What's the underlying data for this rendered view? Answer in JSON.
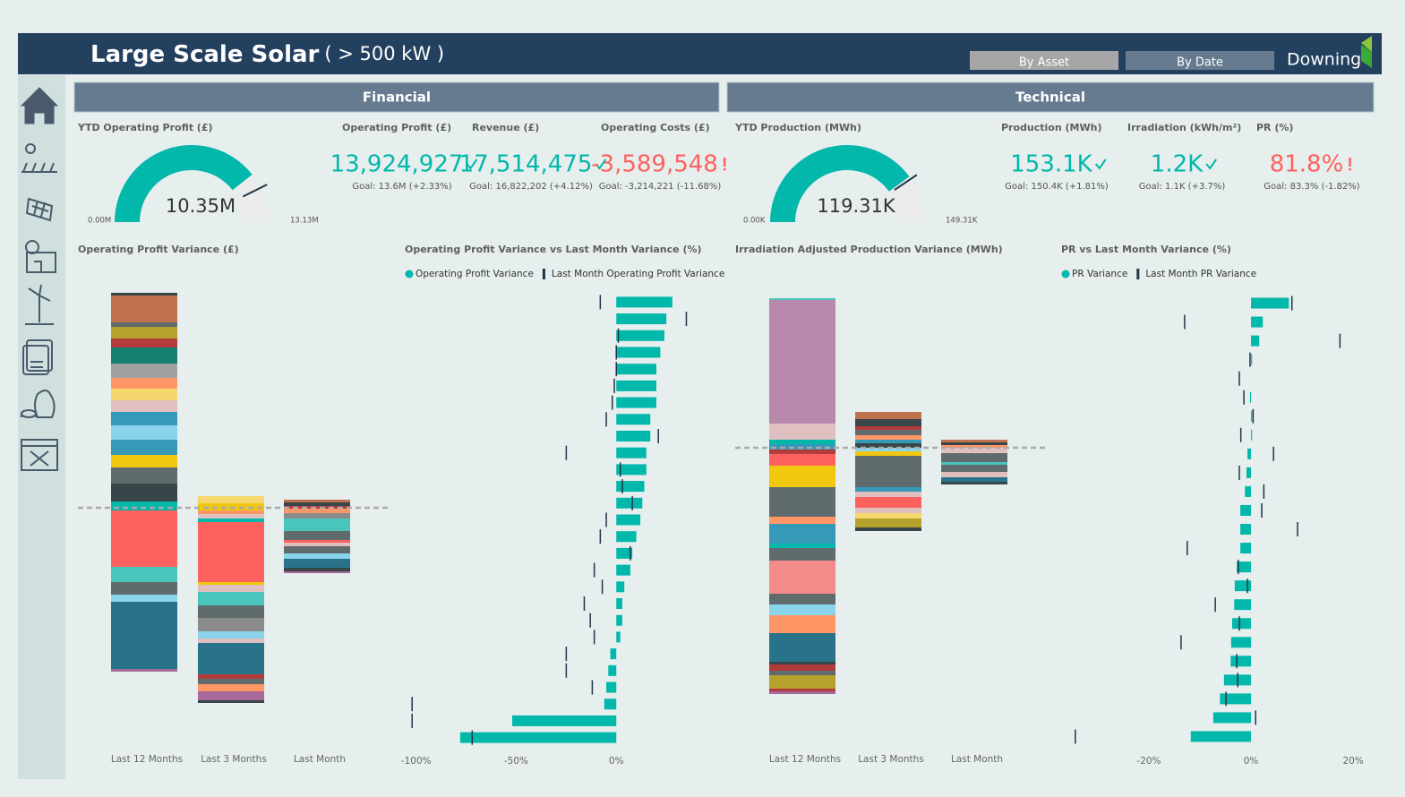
{
  "header": {
    "title": "Large Scale Solar",
    "subtitle": "( > 500 kW )",
    "buttons": [
      "By Asset",
      "By Date"
    ],
    "brand": "Downing"
  },
  "sections": [
    "Financial",
    "Technical"
  ],
  "cards": [
    {
      "title": "Operating Profit (£)",
      "value": "13,924,927",
      "goal": "Goal: 13.6M (+2.33%)",
      "status": "good"
    },
    {
      "title": "Revenue (£)",
      "value": "17,514,475",
      "goal": "Goal: 16,822,202 (+4.12%)",
      "status": "good"
    },
    {
      "title": "Operating Costs (£)",
      "value": "-3,589,548",
      "goal": "Goal: -3,214,221 (-11.68%)",
      "status": "bad"
    },
    {
      "title": "Production (MWh)",
      "value": "153.1K",
      "goal": "Goal: 150.4K (+1.81%)",
      "status": "good"
    },
    {
      "title": "Irradiation (kWh/m²)",
      "value": "1.2K",
      "goal": "Goal: 1.1K (+3.7%)",
      "status": "good"
    },
    {
      "title": "PR (%)",
      "value": "81.8%",
      "goal": "Goal: 83.3% (-1.82%)",
      "status": "bad"
    }
  ],
  "chart_data": [
    {
      "type": "gauge",
      "title": "YTD Operating Profit (£)",
      "value": 10.35,
      "value_label": "10.35M",
      "ylim": [
        0,
        13.13
      ],
      "yticks": [
        {
          "value": 0,
          "label": "0.00M"
        },
        {
          "value": 13.13,
          "label": "13.13M"
        }
      ],
      "target": 11.2,
      "color": "#01B8AA"
    },
    {
      "type": "gauge",
      "title": "YTD Production (MWh)",
      "value": 119.31,
      "value_label": "119.31K",
      "ylim": [
        0,
        149.31
      ],
      "yticks": [
        {
          "value": 0,
          "label": "0.00K"
        },
        {
          "value": 149.31,
          "label": "149.31K"
        }
      ],
      "target": 121,
      "color": "#01B8AA"
    },
    {
      "type": "stacked",
      "title": "Operating Profit Variance (£)",
      "categories": [
        "Last 12 Months",
        "Last 3 Months",
        "Last Month"
      ],
      "ylim": [
        -230,
        245
      ],
      "reference_line": 0,
      "bases": [
        -183,
        -218,
        -73
      ],
      "segments": [
        [
          3,
          75,
          8,
          14,
          17,
          63,
          10,
          20,
          18,
          14,
          17,
          16,
          15,
          13,
          13,
          12,
          16,
          18,
          10,
          13,
          5,
          30,
          3
        ],
        [
          3,
          10,
          8,
          6,
          5,
          35,
          5,
          8,
          15,
          14,
          15,
          8,
          3,
          67,
          4,
          5,
          4,
          8,
          8
        ],
        [
          2,
          4,
          10,
          6,
          8,
          4,
          3,
          10,
          14,
          6,
          5,
          3,
          4,
          3
        ]
      ],
      "colors": [
        [
          "#A66999",
          "#28738A",
          "#8AD4EB",
          "#5F6B6D",
          "#4AC5BB",
          "#FD625E",
          "#01B8AA",
          "#374649",
          "#5F6B6D",
          "#F2C80F",
          "#3599B8",
          "#8AD4EB",
          "#3599B8",
          "#DFBFBF",
          "#F5D76E",
          "#FE9666",
          "#A0A0A0",
          "#138070",
          "#B33B3B",
          "#B5A22C",
          "#5F6B6D",
          "#C0714F",
          "#374649"
        ],
        [
          "#374649",
          "#A66999",
          "#FE9666",
          "#5F6B6D",
          "#B33B3B",
          "#28738A",
          "#DFBFBF",
          "#8AD4EB",
          "#8C8C8C",
          "#5F6B6D",
          "#4AC5BB",
          "#DFBFBF",
          "#F2C80F",
          "#FD625E",
          "#01B8AA",
          "#DFBFBF",
          "#FE9666",
          "#F2C80F",
          "#F5D76E"
        ],
        [
          "#A66999",
          "#374649",
          "#28738A",
          "#8AD4EB",
          "#5F6B6D",
          "#DFBFBF",
          "#FD625E",
          "#5F6B6D",
          "#4AC5BB",
          "#8C8C8C",
          "#FE9666",
          "#B33B3B",
          "#374649",
          "#C0714F"
        ]
      ]
    },
    {
      "type": "hbar",
      "title": "Operating Profit Variance vs Last Month Variance (%)",
      "xlim": [
        -103,
        50
      ],
      "xticks": [
        {
          "value": -100,
          "label": "-100%"
        },
        {
          "value": -50,
          "label": "-50%"
        },
        {
          "value": 0,
          "label": "0%"
        }
      ],
      "series": [
        {
          "name": "Operating Profit Variance",
          "color": "#01B8AA",
          "mark": "bar",
          "values": [
            28,
            25,
            24,
            22,
            20,
            20,
            20,
            17,
            17,
            15,
            15,
            14,
            13,
            12,
            10,
            8,
            7,
            4,
            3,
            3,
            2,
            -3,
            -4,
            -5,
            -6,
            -52,
            -78
          ]
        },
        {
          "name": "Last Month Operating Profit Variance",
          "color": "#1f3547",
          "mark": "tick",
          "values": [
            -8,
            35,
            1,
            0,
            0,
            -1,
            -2,
            -5,
            21,
            -25,
            2,
            3,
            8,
            -5,
            -8,
            7,
            -11,
            -7,
            -16,
            -13,
            -11,
            -25,
            -25,
            -12,
            -102,
            -102,
            -72
          ]
        }
      ]
    },
    {
      "type": "stacked",
      "title": "Irradiation Adjusted Production Variance (MWh)",
      "categories": [
        "Last 12 Months",
        "Last 3 Months",
        "Last Month"
      ],
      "ylim": [
        -285,
        175
      ],
      "reference_line": 0,
      "bases": [
        -275,
        -93,
        -41
      ],
      "segments": [
        [
          3,
          3,
          15,
          5,
          7,
          3,
          32,
          20,
          12,
          12,
          37,
          14,
          5,
          22,
          8,
          33,
          24,
          13,
          5,
          6,
          5,
          18,
          138,
          2
        ],
        [
          4,
          10,
          6,
          6,
          12,
          6,
          5,
          35,
          5,
          4,
          5,
          4,
          5,
          6,
          4,
          8,
          8
        ],
        [
          3,
          5,
          6,
          8,
          3,
          10,
          6,
          3,
          3,
          3
        ]
      ],
      "colors": [
        [
          "#A66999",
          "#B33B3B",
          "#B5A22C",
          "#5F6B6D",
          "#B33B3B",
          "#374649",
          "#28738A",
          "#FE9666",
          "#8AD4EB",
          "#5F6B6D",
          "#F48B8B",
          "#5F6B6D",
          "#01B8AA",
          "#3599B8",
          "#FE9666",
          "#5F6B6D",
          "#F2C80F",
          "#FD625E",
          "#B33B3B",
          "#3599B8",
          "#01B8AA",
          "#DFBFBF",
          "#B888AD",
          "#4AC5BB"
        ],
        [
          "#374649",
          "#B5A22C",
          "#F5D76E",
          "#DFBFBF",
          "#FD625E",
          "#DFBFBF",
          "#3599B8",
          "#5F6B6D",
          "#F2C80F",
          "#8AD4EB",
          "#374649",
          "#3599B8",
          "#FE9666",
          "#5F6B6D",
          "#B33B3B",
          "#374649",
          "#C0714F"
        ],
        [
          "#374649",
          "#28738A",
          "#DFBFBF",
          "#5F6B6D",
          "#4AC5BB",
          "#5F6B6D",
          "#DFBFBF",
          "#FE9666",
          "#374649",
          "#C0714F"
        ]
      ]
    },
    {
      "type": "hbar",
      "title": "PR vs Last Month Variance (%)",
      "xlim": [
        -37,
        24
      ],
      "xticks": [
        {
          "value": -20,
          "label": "-20%"
        },
        {
          "value": 0,
          "label": "0%"
        },
        {
          "value": 20,
          "label": "20%"
        }
      ],
      "series": [
        {
          "name": "PR Variance",
          "color": "#01B8AA",
          "mark": "bar",
          "values": [
            7.4,
            2.3,
            1.6,
            0.2,
            0,
            -0.2,
            0.2,
            0.2,
            -0.7,
            -0.9,
            -1.2,
            -2.1,
            -2.1,
            -2.1,
            -2.8,
            -3.2,
            -3.3,
            -3.7,
            -3.9,
            -4,
            -5.3,
            -6.1,
            -7.4,
            -11.8
          ]
        },
        {
          "name": "Last Month PR Variance",
          "color": "#1f3547",
          "mark": "tick",
          "values": [
            8,
            -13,
            17.4,
            -0.2,
            -2.3,
            -1.4,
            0.4,
            -2,
            4.4,
            -2.3,
            2.5,
            2.1,
            9.1,
            -12.5,
            -2.5,
            -0.7,
            -7,
            -2.3,
            -13.7,
            -2.8,
            -2.6,
            -4.9,
            0.9,
            -34.4
          ]
        }
      ]
    }
  ]
}
